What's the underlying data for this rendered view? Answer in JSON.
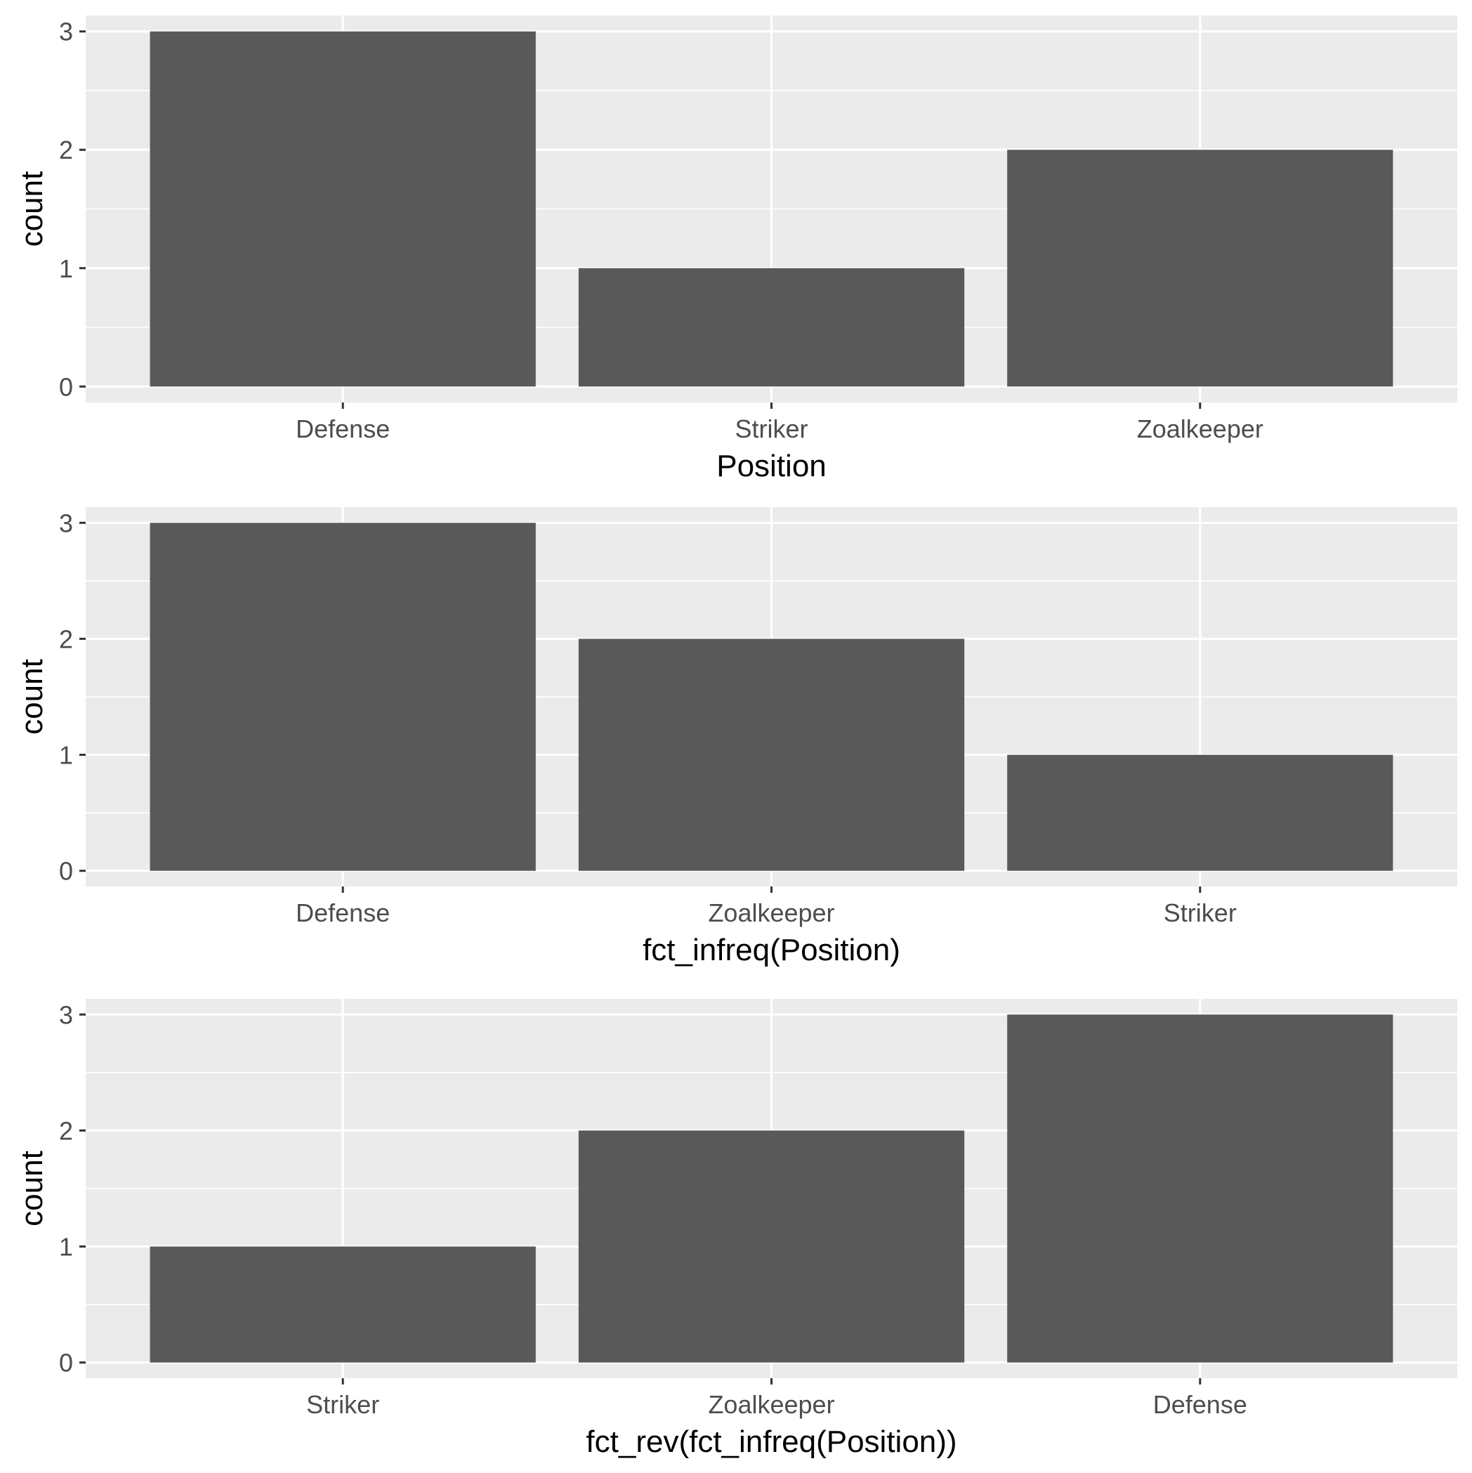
{
  "chart_data": [
    {
      "type": "bar",
      "categories": [
        "Defense",
        "Striker",
        "Zoalkeeper"
      ],
      "values": [
        3,
        1,
        2
      ],
      "xlabel": "Position",
      "ylabel": "count",
      "ylim": [
        0,
        3
      ],
      "yticks": [
        0,
        1,
        2,
        3
      ],
      "grid": true
    },
    {
      "type": "bar",
      "categories": [
        "Defense",
        "Zoalkeeper",
        "Striker"
      ],
      "values": [
        3,
        2,
        1
      ],
      "xlabel": "fct_infreq(Position)",
      "ylabel": "count",
      "ylim": [
        0,
        3
      ],
      "yticks": [
        0,
        1,
        2,
        3
      ],
      "grid": true
    },
    {
      "type": "bar",
      "categories": [
        "Striker",
        "Zoalkeeper",
        "Defense"
      ],
      "values": [
        1,
        2,
        3
      ],
      "xlabel": "fct_rev(fct_infreq(Position))",
      "ylabel": "count",
      "ylim": [
        0,
        3
      ],
      "yticks": [
        0,
        1,
        2,
        3
      ],
      "grid": true
    }
  ],
  "colors": {
    "panel_background": "#EBEBEB",
    "grid": "#FFFFFF",
    "bar_fill": "#595959",
    "tick_text": "#4D4D4D",
    "axis_title": "#000000"
  }
}
